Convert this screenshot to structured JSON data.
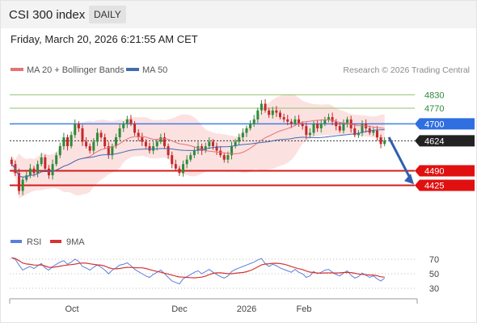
{
  "header": {
    "title": "CSI 300 index",
    "period": "DAILY",
    "datetime": "Friday, March 20, 2026 6:21:55 AM CET"
  },
  "legend": {
    "ma20": "MA 20 + Bollinger Bands",
    "ma50": "MA 50",
    "copyright": "Research © 2026 Trading Central",
    "rsi": "RSI",
    "rsi_ma": "9MA"
  },
  "colors": {
    "candle_up": "#2e8b3a",
    "candle_down": "#c62828",
    "ma20": "#e57373",
    "ma50": "#3f6db3",
    "bollinger_fill": "#fbdcdc",
    "resistance_line": "#8fc46c",
    "pivot_line": "#3f7fe6",
    "support_line": "#d41c1c",
    "arrow": "#2f5fb3",
    "rsi": "#5b7fd9",
    "rsi_ma": "#d63333"
  },
  "chart_data": {
    "type": "candlestick",
    "y_range": [
      4250,
      4900
    ],
    "levels": [
      {
        "label": "4830",
        "value": 4830,
        "kind": "resistance"
      },
      {
        "label": "4770",
        "value": 4770,
        "kind": "resistance"
      },
      {
        "label": "4700",
        "value": 4700,
        "kind": "pivot"
      },
      {
        "label": "4624",
        "value": 4624,
        "kind": "last"
      },
      {
        "label": "4490",
        "value": 4490,
        "kind": "support"
      },
      {
        "label": "4425",
        "value": 4425,
        "kind": "support"
      }
    ],
    "x_labels": [
      "Oct",
      "Dec",
      "2026",
      "Feb"
    ],
    "closes": [
      4520,
      4480,
      4400,
      4450,
      4470,
      4500,
      4480,
      4520,
      4550,
      4500,
      4470,
      4520,
      4560,
      4600,
      4640,
      4600,
      4650,
      4700,
      4680,
      4620,
      4600,
      4580,
      4620,
      4660,
      4640,
      4600,
      4560,
      4600,
      4640,
      4680,
      4700,
      4720,
      4700,
      4660,
      4640,
      4620,
      4600,
      4580,
      4600,
      4620,
      4640,
      4600,
      4560,
      4520,
      4500,
      4480,
      4520,
      4540,
      4560,
      4580,
      4600,
      4580,
      4600,
      4620,
      4600,
      4580,
      4560,
      4540,
      4560,
      4600,
      4620,
      4640,
      4660,
      4680,
      4700,
      4720,
      4760,
      4790,
      4760,
      4740,
      4760,
      4750,
      4730,
      4720,
      4710,
      4700,
      4720,
      4700,
      4690,
      4650,
      4660,
      4700,
      4680,
      4700,
      4720,
      4730,
      4710,
      4690,
      4670,
      4700,
      4720,
      4680,
      4650,
      4660,
      4700,
      4680,
      4660,
      4670,
      4640,
      4610,
      4624
    ],
    "rsi_range": [
      20,
      80
    ],
    "rsi_levels": [
      30,
      50,
      70
    ],
    "rsi_labels": [
      "70",
      "50",
      "30"
    ],
    "rsi": [
      72,
      70,
      62,
      55,
      58,
      60,
      57,
      61,
      64,
      58,
      55,
      60,
      63,
      66,
      68,
      63,
      66,
      70,
      67,
      60,
      58,
      55,
      59,
      62,
      59,
      55,
      50,
      55,
      58,
      62,
      63,
      65,
      61,
      56,
      53,
      50,
      47,
      45,
      49,
      52,
      55,
      50,
      45,
      40,
      38,
      36,
      43,
      46,
      49,
      52,
      54,
      50,
      53,
      56,
      52,
      49,
      46,
      44,
      47,
      53,
      56,
      58,
      60,
      62,
      64,
      66,
      69,
      71,
      64,
      60,
      63,
      61,
      58,
      56,
      54,
      52,
      56,
      52,
      50,
      45,
      47,
      53,
      50,
      52,
      55,
      56,
      52,
      49,
      47,
      51,
      54,
      48,
      44,
      46,
      51,
      48,
      45,
      47,
      43,
      40,
      44
    ]
  }
}
